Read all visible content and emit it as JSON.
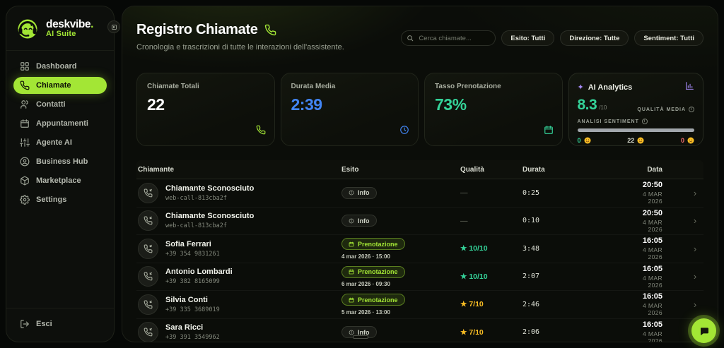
{
  "colors": {
    "accent": "#a3e635",
    "emerald": "#34d399",
    "blue": "#4285f4",
    "yellow": "#fbbf24",
    "purple": "#a78bfa",
    "red": "#f87171"
  },
  "sidebar": {
    "brand_name": "deskvibe",
    "brand_dot": ".",
    "brand_suffix": "AI Suite",
    "items": [
      {
        "label": "Dashboard",
        "icon": "dashboard"
      },
      {
        "label": "Chiamate",
        "icon": "phone",
        "active": true
      },
      {
        "label": "Contatti",
        "icon": "users"
      },
      {
        "label": "Appuntamenti",
        "icon": "calendar"
      },
      {
        "label": "Agente AI",
        "icon": "sliders"
      },
      {
        "label": "Business Hub",
        "icon": "user-circle"
      },
      {
        "label": "Marketplace",
        "icon": "box"
      },
      {
        "label": "Settings",
        "icon": "gear"
      }
    ],
    "logout_label": "Esci"
  },
  "header": {
    "title": "Registro Chiamate",
    "subtitle": "Cronologia e trascrizioni di tutte le interazioni dell'assistente.",
    "search_placeholder": "Cerca chiamate...",
    "filters": [
      "Esito: Tutti",
      "Direzione: Tutte",
      "Sentiment: Tutti"
    ]
  },
  "stats": {
    "calls": {
      "label": "Chiamate Totali",
      "value": "22"
    },
    "duration": {
      "label": "Durata Media",
      "value": "2:39"
    },
    "booking": {
      "label": "Tasso Prenotazione",
      "value": "73%"
    },
    "analytics": {
      "title": "AI Analytics",
      "score": "8.3",
      "score_suffix": "/10",
      "quality_label": "QUALITÀ MEDIA",
      "sentiment_label": "ANALISI SENTIMENT",
      "positive_count": "0",
      "neutral_count": "22",
      "negative_count": "0"
    }
  },
  "table": {
    "headers": {
      "caller": "Chiamante",
      "outcome": "Esito",
      "quality": "Qualità",
      "duration": "Durata",
      "date": "Data"
    },
    "rows": [
      {
        "name": "Chiamante Sconosciuto",
        "phone": "web-call-813cba2f",
        "outcome": {
          "type": "info",
          "label": "Info"
        },
        "quality": {
          "value": "—"
        },
        "duration": "0:25",
        "time": "20:50",
        "date": "4 MAR 2026"
      },
      {
        "name": "Chiamante Sconosciuto",
        "phone": "web-call-813cba2f",
        "outcome": {
          "type": "info",
          "label": "Info"
        },
        "quality": {
          "value": "—"
        },
        "duration": "0:10",
        "time": "20:50",
        "date": "4 MAR 2026"
      },
      {
        "name": "Sofia Ferrari",
        "phone": "+39 354 9831261",
        "outcome": {
          "type": "prenotazione",
          "label": "Prenotazione",
          "sub": "4 mar 2026 · 15:00"
        },
        "quality": {
          "value": "10/10",
          "color": "green"
        },
        "duration": "3:48",
        "time": "16:05",
        "date": "4 MAR 2026"
      },
      {
        "name": "Antonio Lombardi",
        "phone": "+39 382 8165099",
        "outcome": {
          "type": "prenotazione",
          "label": "Prenotazione",
          "sub": "6 mar 2026 · 09:30"
        },
        "quality": {
          "value": "10/10",
          "color": "green"
        },
        "duration": "2:07",
        "time": "16:05",
        "date": "4 MAR 2026"
      },
      {
        "name": "Silvia Conti",
        "phone": "+39 335 3689019",
        "outcome": {
          "type": "prenotazione",
          "label": "Prenotazione",
          "sub": "5 mar 2026 · 13:00"
        },
        "quality": {
          "value": "7/10",
          "color": "yellow"
        },
        "duration": "2:46",
        "time": "16:05",
        "date": "4 MAR 2026"
      },
      {
        "name": "Sara Ricci",
        "phone": "+39 391 3549962",
        "outcome": {
          "type": "info",
          "label": "Info"
        },
        "quality": {
          "value": "7/10",
          "color": "yellow"
        },
        "duration": "2:06",
        "time": "16:05",
        "date": "4 MAR 2026"
      }
    ]
  }
}
